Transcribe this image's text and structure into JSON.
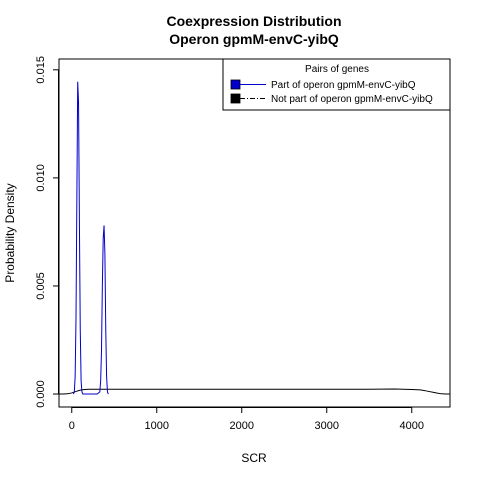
{
  "chart_data": {
    "type": "line",
    "title": "Coexpression Distribution",
    "subtitle": "Operon gpmM-envC-yibQ",
    "xlabel": "SCR",
    "ylabel": "Probability Density",
    "xlim": [
      -150,
      4450
    ],
    "ylim": [
      -0.0006,
      0.0155
    ],
    "x_ticks": [
      0,
      1000,
      2000,
      3000,
      4000
    ],
    "y_ticks": [
      0.0,
      0.005,
      0.01,
      0.015
    ],
    "y_tick_labels": [
      "0.000",
      "0.005",
      "0.010",
      "0.015"
    ],
    "grid": false,
    "legend": {
      "title": "Pairs of genes",
      "position": "top-right",
      "entries": [
        {
          "label": "Part of operon gpmM-envC-yibQ",
          "color": "#0000cc",
          "fill": "#0000cc",
          "line": "solid"
        },
        {
          "label": "Not part of operon gpmM-envC-yibQ",
          "color": "#000000",
          "fill": "#000000",
          "line": "dashdot"
        }
      ]
    },
    "series": [
      {
        "name": "Part of operon gpmM-envC-yibQ",
        "color": "#0000cc",
        "x": [
          20,
          30,
          40,
          50,
          60,
          70,
          80,
          90,
          100,
          110,
          120,
          130,
          200,
          300,
          330,
          340,
          350,
          360,
          370,
          380,
          390,
          400,
          410,
          420,
          430
        ],
        "y": [
          0,
          0.0001,
          0.0008,
          0.0035,
          0.009,
          0.01445,
          0.0135,
          0.008,
          0.003,
          0.0006,
          0.0001,
          0,
          0,
          0,
          0.0001,
          0.0006,
          0.002,
          0.005,
          0.0072,
          0.0078,
          0.0065,
          0.003,
          0.0008,
          0.0001,
          0
        ]
      },
      {
        "name": "Not part of operon gpmM-envC-yibQ",
        "color": "#000000",
        "x": [
          -150,
          -100,
          -50,
          0,
          50,
          100,
          150,
          200,
          300,
          500,
          1000,
          2000,
          3000,
          3500,
          3800,
          4000,
          4100,
          4150,
          4200,
          4250,
          4300,
          4350,
          4400,
          4450
        ],
        "y": [
          0,
          0,
          1e-05,
          5e-05,
          0.00012,
          0.00018,
          0.00021,
          0.00022,
          0.00022,
          0.00022,
          0.00022,
          0.00022,
          0.00022,
          0.00022,
          0.00023,
          0.00021,
          0.00019,
          0.00016,
          0.00012,
          8e-05,
          4e-05,
          1e-05,
          0,
          0
        ]
      }
    ]
  }
}
